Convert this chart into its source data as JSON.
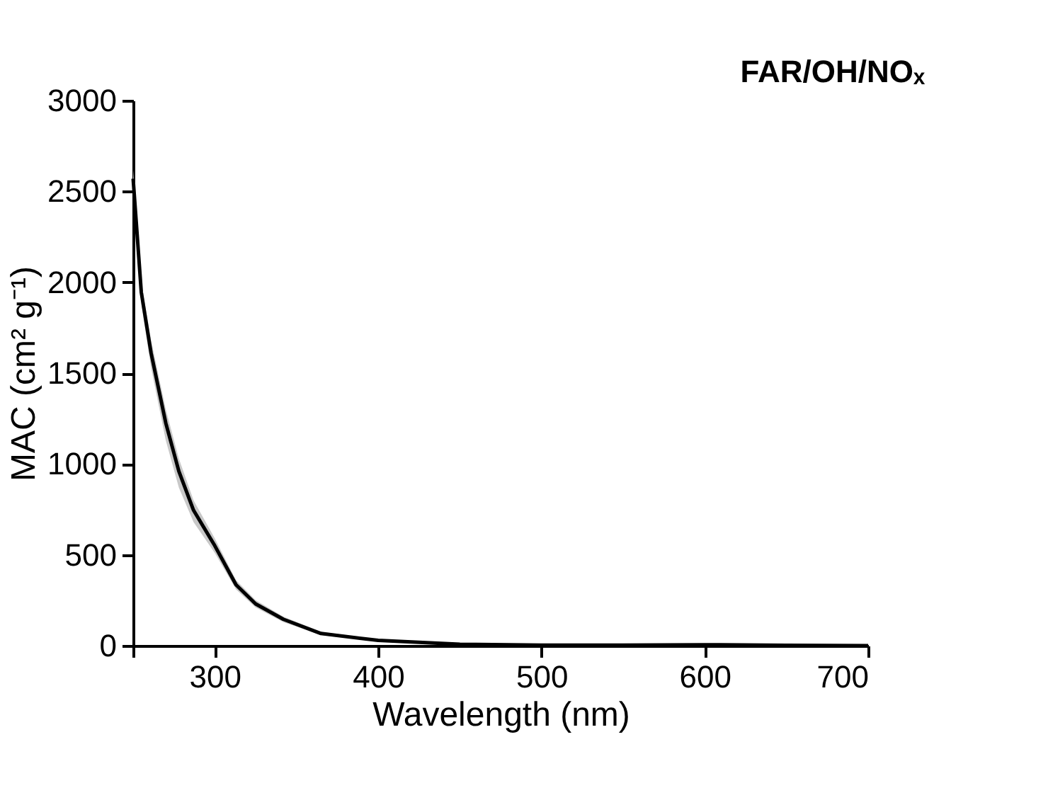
{
  "chart_data": {
    "type": "line",
    "title": "FAR/OH/NOₓ",
    "xlabel": "Wavelength (nm)",
    "ylabel": "MAC (cm² g⁻¹)",
    "x": [
      250,
      255,
      261,
      270,
      278,
      287,
      300,
      313,
      325,
      342,
      365,
      400,
      450,
      500,
      550,
      600,
      650,
      700
    ],
    "series": [
      {
        "color": "#000000",
        "values": [
          2570,
          1945,
          1610,
          1225,
          960,
          745,
          550,
          335,
          230,
          145,
          67,
          29,
          8,
          3,
          3,
          5,
          2,
          0
        ],
        "lower": [
          2500,
          1880,
          1530,
          1130,
          870,
          680,
          510,
          310,
          210,
          130,
          58,
          24,
          5,
          1,
          0,
          2,
          0,
          0
        ],
        "upper": [
          2620,
          2000,
          1680,
          1300,
          1030,
          800,
          590,
          360,
          250,
          160,
          76,
          34,
          11,
          6,
          6,
          8,
          4,
          2
        ]
      }
    ],
    "xlim": [
      250,
      700
    ],
    "ylim": [
      0,
      3000
    ],
    "xticks": [
      {
        "value": 250,
        "label": null
      },
      300,
      400,
      500,
      600,
      700
    ],
    "yticks": [
      0,
      500,
      1000,
      1500,
      2000,
      2500,
      3000
    ],
    "grid": false,
    "marker": "none",
    "line_style": "solid"
  }
}
